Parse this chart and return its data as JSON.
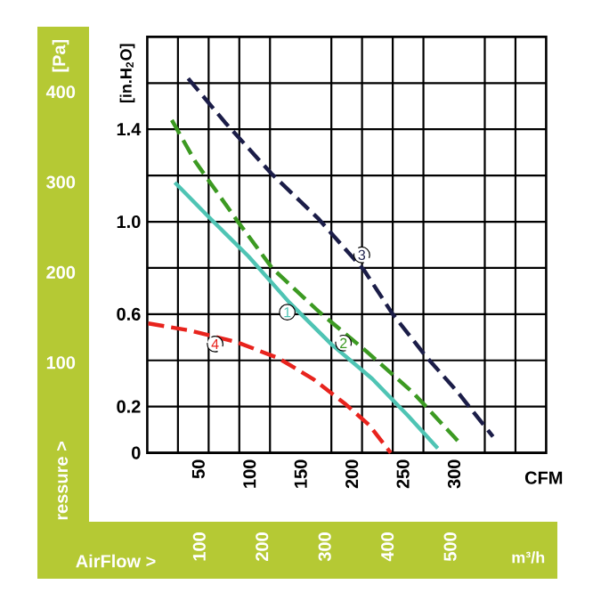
{
  "chart_data": {
    "type": "line",
    "xlabel": "CFM",
    "ylabel": "[in.H$_{2}$O]",
    "y2label": "[Pa]",
    "x2label": "m³/h",
    "annotations": [
      "ressure >",
      "AirFlow >"
    ],
    "xlim": [
      0,
      390
    ],
    "xticks": [
      {
        "value": 30,
        "label": null
      },
      50,
      {
        "value": 60,
        "label": null
      },
      {
        "value": 90,
        "label": null
      },
      100,
      {
        "value": 120,
        "label": null
      },
      150,
      {
        "value": 180,
        "label": null
      },
      200,
      {
        "value": 210,
        "label": null
      },
      {
        "value": 240,
        "label": null
      },
      250,
      {
        "value": 270,
        "label": null
      },
      300,
      {
        "value": 330,
        "label": null
      },
      {
        "value": 360,
        "label": null
      }
    ],
    "ylim": [
      0,
      1.8
    ],
    "yticks": [
      0,
      0.2,
      {
        "value": 0.4,
        "label": null
      },
      0.6,
      {
        "value": 0.8,
        "label": null
      },
      {
        "value": 1.0,
        "label": "1.0"
      },
      {
        "value": 1.2,
        "label": null
      },
      1.4,
      {
        "value": 1.6,
        "label": null
      }
    ],
    "y2lim": [
      0,
      461
    ],
    "y2ticks": [
      100,
      200,
      300,
      400
    ],
    "x2lim": [
      13,
      649
    ],
    "x2ticks": [
      100,
      200,
      300,
      400,
      500
    ],
    "grid": true,
    "series": [
      {
        "name": "1",
        "color": "#4fc4b4",
        "line_style": "solid",
        "x": [
          27,
          58,
          99,
          139,
          180,
          220,
          255,
          284
        ],
        "values": [
          1.17,
          1.03,
          0.85,
          0.65,
          0.47,
          0.32,
          0.16,
          0.02
        ]
      },
      {
        "name": "2",
        "color": "#3c9a22",
        "line_style": "dashed",
        "x": [
          24,
          47,
          87,
          122,
          168,
          214,
          260,
          304
        ],
        "values": [
          1.44,
          1.26,
          1.01,
          0.8,
          0.61,
          0.44,
          0.26,
          0.05
        ]
      },
      {
        "name": "3",
        "color": "#1b1d48",
        "line_style": "dashed",
        "x": [
          40,
          76,
          121,
          168,
          212,
          240,
          272,
          304,
          338
        ],
        "values": [
          1.62,
          1.43,
          1.21,
          1.01,
          0.79,
          0.6,
          0.42,
          0.26,
          0.07
        ]
      },
      {
        "name": "4",
        "color": "#e8231d",
        "line_style": "dashed",
        "x": [
          1,
          41,
          87,
          128,
          162,
          194,
          217,
          238
        ],
        "values": [
          0.56,
          0.53,
          0.48,
          0.41,
          0.32,
          0.21,
          0.12,
          0
        ]
      }
    ]
  }
}
